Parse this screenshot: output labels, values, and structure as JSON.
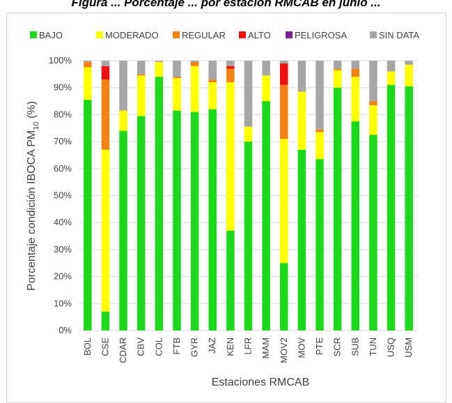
{
  "caption": "Figura ... Porcentaje ... por estación RMCAB en junio ...",
  "chart_data": {
    "type": "bar",
    "stacked": true,
    "xlabel": "Estaciones RMCAB",
    "ylabel": "Porcentaje condición IBOCA PM",
    "ylabel_sub": "10",
    "ylabel_suffix": " (%)",
    "ylim": [
      0,
      100
    ],
    "yticks": [
      "0%",
      "10%",
      "20%",
      "30%",
      "40%",
      "50%",
      "60%",
      "70%",
      "80%",
      "90%",
      "100%"
    ],
    "grid": true,
    "legend_position": "top",
    "categories": [
      "BOL",
      "CSE",
      "CDAR",
      "CBV",
      "COL",
      "FTB",
      "GYR",
      "JAZ",
      "KEN",
      "LFR",
      "MAM",
      "MOV2",
      "MOV",
      "PTE",
      "SCR",
      "SUB",
      "TUN",
      "USQ",
      "USM"
    ],
    "series": [
      {
        "name": "BAJO",
        "color": "#1ed81e",
        "values": [
          85.5,
          7,
          74,
          79.5,
          94,
          81.5,
          81,
          82,
          37,
          70,
          85,
          25,
          67,
          63.5,
          90,
          77.5,
          72.5,
          91,
          90.5
        ]
      },
      {
        "name": "MODERADO",
        "color": "#ffff00",
        "values": [
          12,
          60,
          7.5,
          15,
          5.5,
          12,
          17,
          10,
          55,
          5.5,
          9.5,
          46,
          21.5,
          10,
          6.5,
          16.5,
          11,
          5,
          8
        ]
      },
      {
        "name": "REGULAR",
        "color": "#f28213",
        "values": [
          2,
          26,
          0,
          0.5,
          0,
          0.5,
          1.5,
          1,
          5,
          0,
          0,
          20,
          0,
          1,
          0.5,
          3,
          1.5,
          0,
          0
        ]
      },
      {
        "name": "ALTO",
        "color": "#ee1111",
        "values": [
          0,
          5,
          0,
          0,
          0,
          0,
          0,
          0,
          1,
          0,
          0,
          8,
          0,
          0,
          0,
          0,
          0,
          0,
          0
        ]
      },
      {
        "name": "PELIGROSA",
        "color": "#7a1f8f",
        "values": [
          0,
          0,
          0,
          0,
          0,
          0,
          0,
          0,
          0,
          0,
          0,
          0,
          0,
          0,
          0,
          0,
          0,
          0,
          0
        ]
      },
      {
        "name": "SIN DATA",
        "color": "#a6a6a6",
        "values": [
          0.5,
          2,
          18.5,
          5,
          0.5,
          6,
          0.5,
          7,
          2,
          24.5,
          5.5,
          1,
          11.5,
          25.5,
          3,
          3,
          15,
          4,
          1.5
        ]
      }
    ]
  }
}
